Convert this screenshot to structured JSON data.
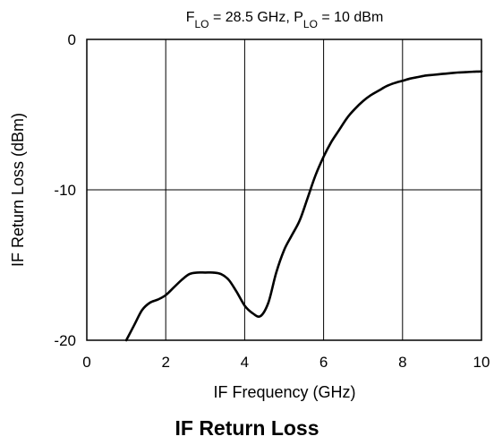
{
  "caption": "IF Return Loss",
  "chart_data": {
    "type": "line",
    "subtitle_parts": [
      {
        "text": "F",
        "sub": false
      },
      {
        "text": "LO",
        "sub": true
      },
      {
        "text": " = 28.5 GHz, P",
        "sub": false
      },
      {
        "text": "LO",
        "sub": true
      },
      {
        "text": " = 10 dBm",
        "sub": false
      }
    ],
    "xlabel": "IF Frequency (GHz)",
    "ylabel": "IF Return Loss (dBm)",
    "xlim": [
      0,
      10
    ],
    "ylim": [
      -20,
      0
    ],
    "xticks": [
      0,
      2,
      4,
      6,
      8,
      10
    ],
    "yticks": [
      0,
      -10,
      -20
    ],
    "xgrid": [
      2,
      4,
      6,
      8
    ],
    "ygrid": [
      -10
    ],
    "grid": true,
    "series": [
      {
        "color": "#000000",
        "x": [
          1.0,
          1.2,
          1.4,
          1.6,
          1.8,
          2.0,
          2.2,
          2.4,
          2.6,
          2.8,
          3.0,
          3.2,
          3.4,
          3.6,
          3.8,
          4.0,
          4.2,
          4.4,
          4.6,
          4.8,
          5.0,
          5.2,
          5.4,
          5.6,
          5.8,
          6.0,
          6.2,
          6.4,
          6.6,
          6.8,
          7.0,
          7.2,
          7.4,
          7.6,
          7.8,
          8.0,
          8.2,
          8.4,
          8.6,
          8.8,
          9.0,
          9.2,
          9.4,
          9.6,
          9.8,
          10.0
        ],
        "y": [
          -20.0,
          -19.0,
          -18.0,
          -17.5,
          -17.3,
          -17.0,
          -16.5,
          -16.0,
          -15.6,
          -15.5,
          -15.5,
          -15.5,
          -15.6,
          -16.0,
          -16.8,
          -17.7,
          -18.2,
          -18.4,
          -17.5,
          -15.5,
          -14.0,
          -13.0,
          -12.0,
          -10.5,
          -9.0,
          -7.8,
          -6.8,
          -6.0,
          -5.2,
          -4.6,
          -4.1,
          -3.7,
          -3.4,
          -3.1,
          -2.9,
          -2.75,
          -2.6,
          -2.5,
          -2.4,
          -2.35,
          -2.3,
          -2.25,
          -2.2,
          -2.18,
          -2.15,
          -2.13
        ]
      }
    ]
  }
}
